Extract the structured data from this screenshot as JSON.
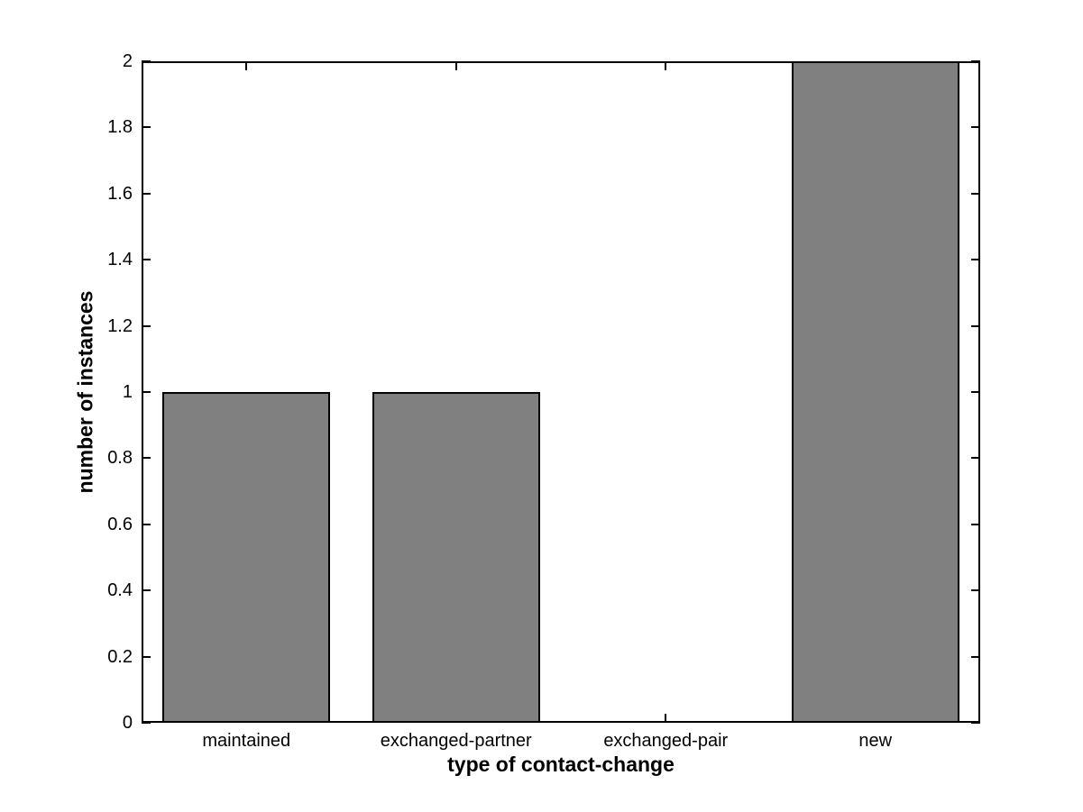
{
  "figure": {
    "background": "#ffffff"
  },
  "chart_data": {
    "type": "bar",
    "title": "",
    "xlabel": "type of contact-change",
    "ylabel": "number of instances",
    "categories": [
      "maintained",
      "exchanged-partner",
      "exchanged-pair",
      "new"
    ],
    "values": [
      1,
      1,
      0,
      2
    ],
    "ylim": [
      0,
      2
    ],
    "yticks": [
      0,
      0.2,
      0.4,
      0.6,
      0.8,
      1,
      1.2,
      1.4,
      1.6,
      1.8,
      2
    ],
    "ytick_labels": [
      "0",
      "0.2",
      "0.4",
      "0.6",
      "0.8",
      "1",
      "1.2",
      "1.4",
      "1.6",
      "1.8",
      "2"
    ],
    "bar_width_fraction": 0.8,
    "grid": false,
    "legend": null,
    "style": {
      "bar_fill": "#808080",
      "bar_edge": "#000000",
      "axis_color": "#000000",
      "text_color": "#000000",
      "background": "#ffffff",
      "tick_direction": "in",
      "box": true
    }
  }
}
